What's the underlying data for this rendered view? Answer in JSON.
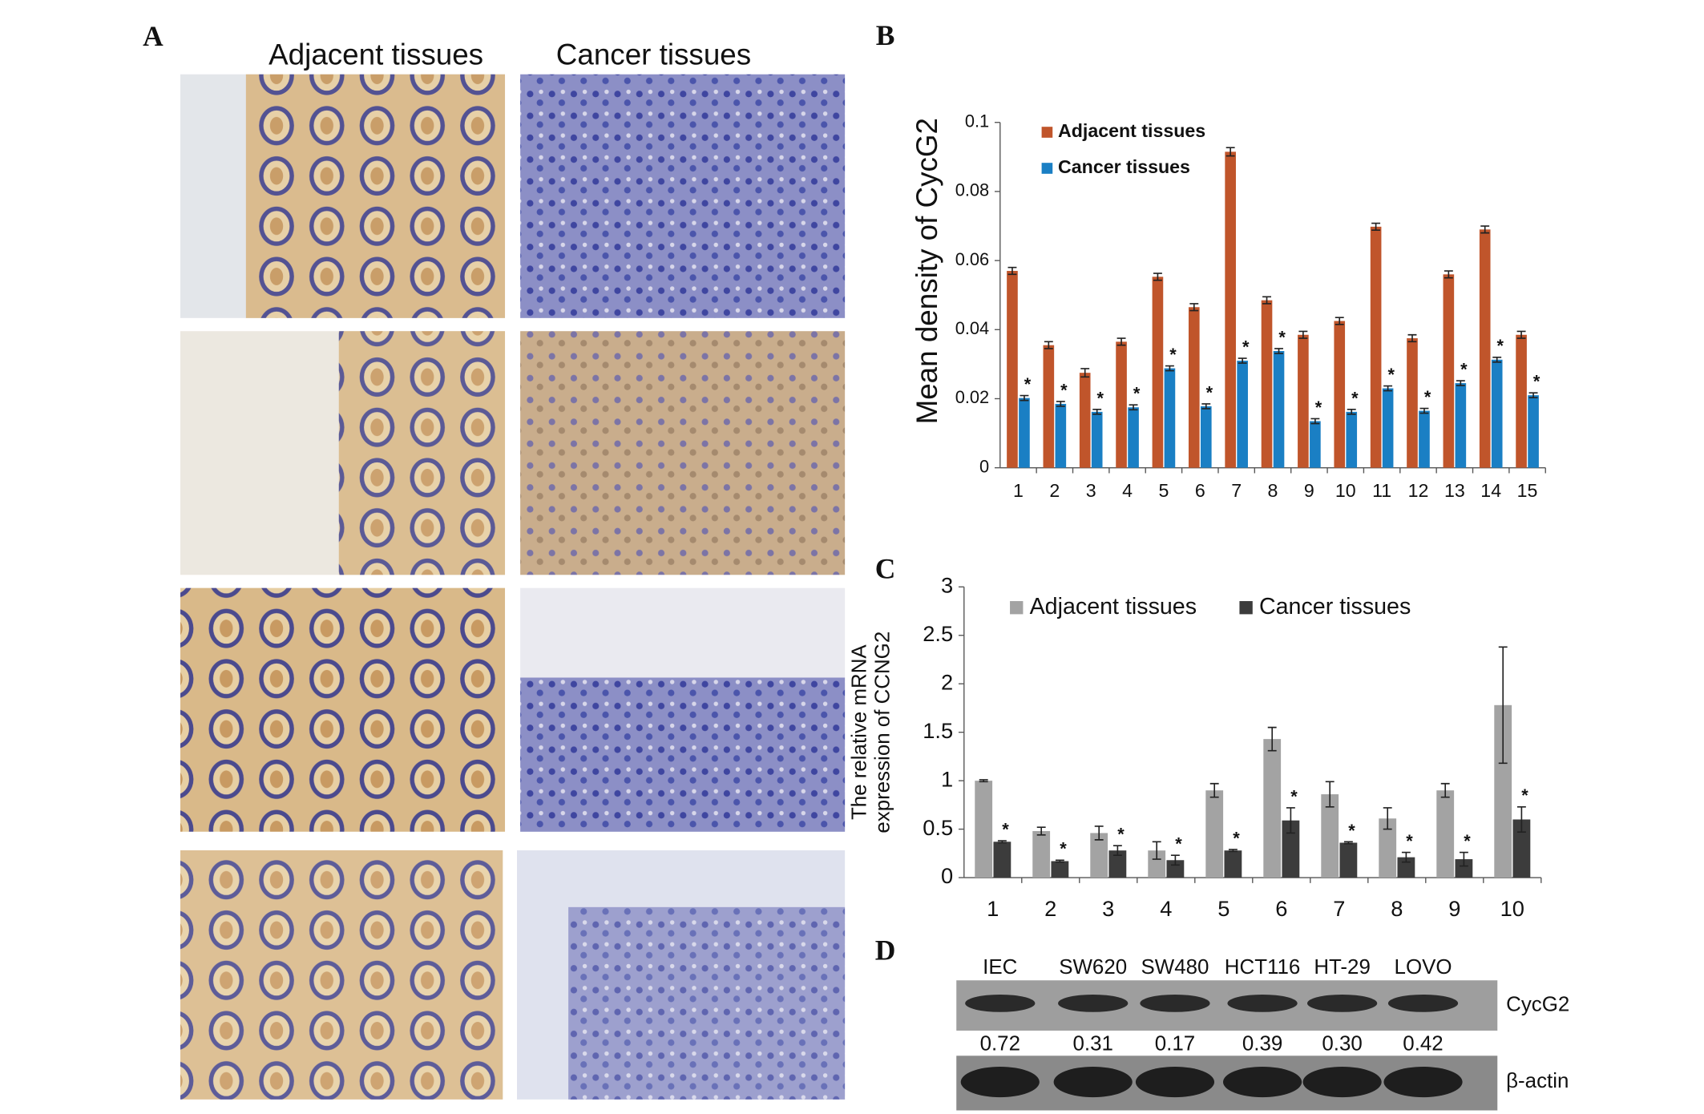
{
  "panel_a": {
    "label": "A",
    "columns": [
      "Adjacent tissues",
      "Cancer tissues"
    ]
  },
  "chart_data": [
    {
      "type": "bar",
      "label": "B",
      "ylabel": [
        "Mean density of CycG2"
      ],
      "categories": [
        "1",
        "2",
        "3",
        "4",
        "5",
        "6",
        "7",
        "8",
        "9",
        "10",
        "11",
        "12",
        "13",
        "14",
        "15"
      ],
      "series": [
        {
          "name": "Adjacent tissues",
          "color": "#c0552b",
          "values": [
            0.057,
            0.0355,
            0.0275,
            0.0365,
            0.0553,
            0.0465,
            0.0915,
            0.0485,
            0.0385,
            0.0425,
            0.0698,
            0.0375,
            0.056,
            0.069,
            0.0385
          ],
          "errors": [
            0.001,
            0.001,
            0.0012,
            0.001,
            0.001,
            0.001,
            0.0012,
            0.001,
            0.001,
            0.001,
            0.001,
            0.001,
            0.001,
            0.001,
            0.001
          ]
        },
        {
          "name": "Cancer tissues",
          "color": "#1a7fc4",
          "values": [
            0.0202,
            0.0185,
            0.0162,
            0.0175,
            0.0288,
            0.0178,
            0.031,
            0.0338,
            0.0135,
            0.0162,
            0.023,
            0.0165,
            0.0245,
            0.0313,
            0.021
          ],
          "errors": [
            0.0007,
            0.0007,
            0.0007,
            0.0007,
            0.0007,
            0.0007,
            0.0007,
            0.0007,
            0.0007,
            0.0007,
            0.0007,
            0.0007,
            0.0007,
            0.0007,
            0.0007
          ],
          "significance": [
            "*",
            "*",
            "*",
            "*",
            "*",
            "*",
            "*",
            "*",
            "*",
            "*",
            "*",
            "*",
            "*",
            "*",
            "*"
          ]
        }
      ],
      "ylim": [
        0,
        0.1
      ],
      "yticks": [
        0,
        0.02,
        0.04,
        0.06,
        0.08,
        0.1
      ],
      "grid": false
    },
    {
      "type": "bar",
      "label": "C",
      "ylabel": [
        "The relative mRNA",
        "expression of CCNG2"
      ],
      "categories": [
        "1",
        "2",
        "3",
        "4",
        "5",
        "6",
        "7",
        "8",
        "9",
        "10"
      ],
      "series": [
        {
          "name": "Adjacent tissues",
          "color": "#a3a3a3",
          "values": [
            1.0,
            0.48,
            0.46,
            0.28,
            0.9,
            1.43,
            0.86,
            0.61,
            0.9,
            1.78
          ],
          "errors": [
            0.01,
            0.04,
            0.07,
            0.09,
            0.07,
            0.12,
            0.13,
            0.11,
            0.07,
            0.6
          ]
        },
        {
          "name": "Cancer tissues",
          "color": "#3c3c3c",
          "values": [
            0.37,
            0.17,
            0.28,
            0.18,
            0.28,
            0.59,
            0.36,
            0.21,
            0.19,
            0.6
          ],
          "errors": [
            0.01,
            0.01,
            0.05,
            0.05,
            0.01,
            0.13,
            0.01,
            0.05,
            0.07,
            0.13
          ],
          "significance": [
            "*",
            "*",
            "*",
            "*",
            "*",
            "*",
            "*",
            "*",
            "*",
            "*"
          ]
        }
      ],
      "ylim": [
        0,
        3
      ],
      "yticks": [
        0,
        0.5,
        1,
        1.5,
        2,
        2.5,
        3
      ],
      "grid": false
    }
  ],
  "blot": {
    "label": "D",
    "lanes": [
      "IEC",
      "SW620",
      "SW480",
      "HCT116",
      "HT-29",
      "LOVO"
    ],
    "densities": [
      0.72,
      0.31,
      0.17,
      0.39,
      {
        "value": 0.3,
        "label": "0.30"
      },
      0.42
    ],
    "rows": [
      "CycG2",
      "β-actin"
    ]
  }
}
